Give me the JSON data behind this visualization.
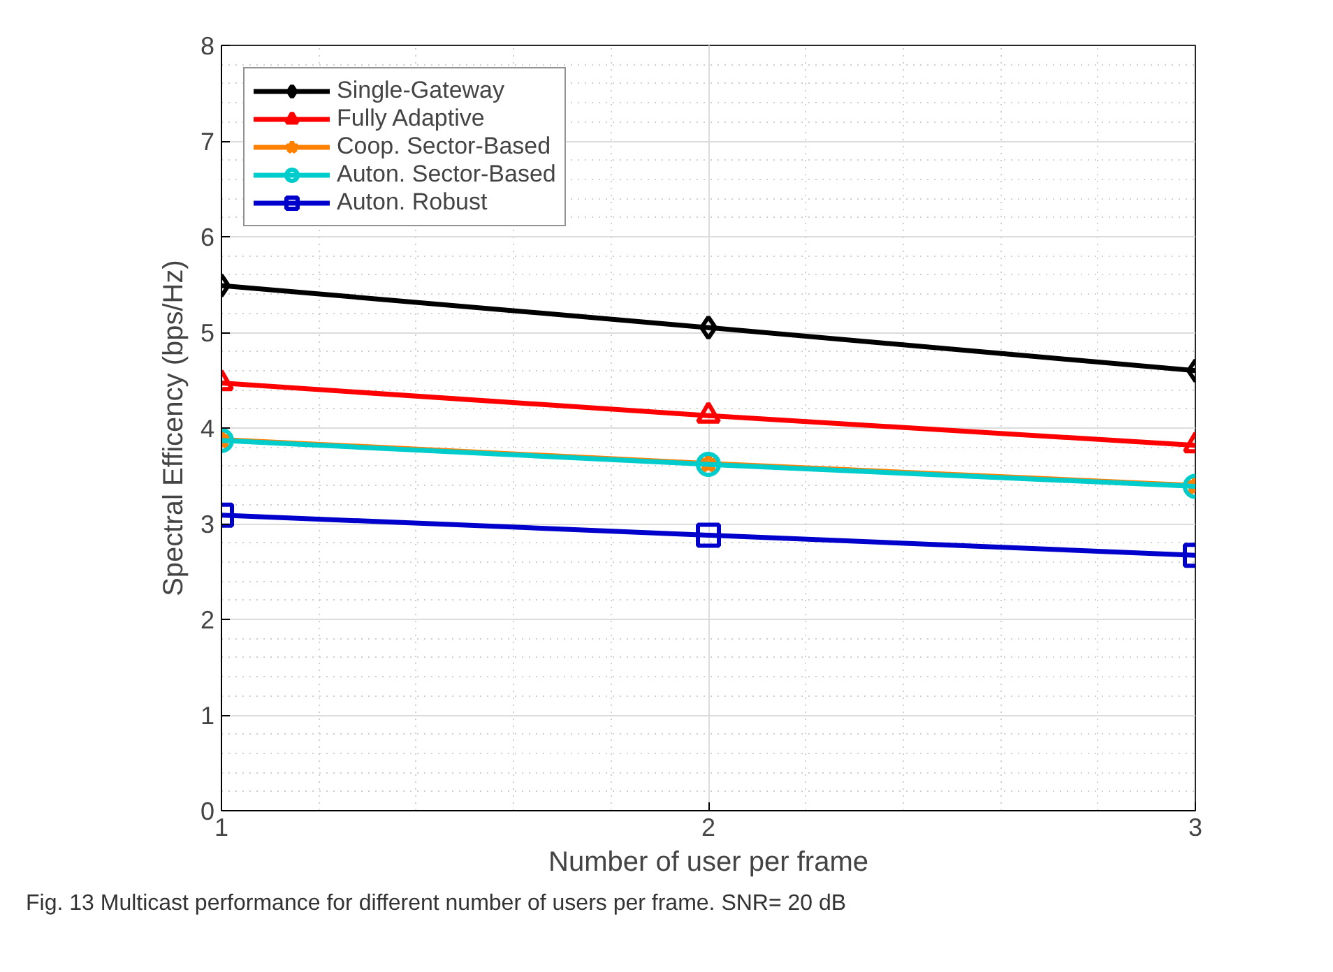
{
  "chart_data": {
    "type": "line",
    "xlabel": "Number of user per frame",
    "ylabel": "Spectral Efficency (bps/Hz)",
    "x": [
      1,
      2,
      3
    ],
    "xlim": [
      1,
      3
    ],
    "ylim": [
      0,
      8
    ],
    "xticks": [
      1,
      2,
      3
    ],
    "yticks": [
      0,
      1,
      2,
      3,
      4,
      5,
      6,
      7,
      8
    ],
    "grid": true,
    "legend": "top left",
    "line_style": "solid",
    "series": [
      {
        "name": "Single-Gateway",
        "color": "#000000",
        "marker": "diamond",
        "values": [
          5.49,
          5.05,
          4.6
        ]
      },
      {
        "name": "Fully Adaptive",
        "color": "#ff0000",
        "marker": "triangle",
        "values": [
          4.47,
          4.13,
          3.82
        ]
      },
      {
        "name": "Coop. Sector-Based",
        "color": "#ff8000",
        "marker": "star",
        "values": [
          3.88,
          3.63,
          3.4
        ]
      },
      {
        "name": "Auton. Sector-Based",
        "color": "#00cccc",
        "marker": "circle",
        "values": [
          3.87,
          3.62,
          3.39
        ]
      },
      {
        "name": "Auton. Robust",
        "color": "#0000cc",
        "marker": "square",
        "values": [
          3.09,
          2.88,
          2.67
        ]
      }
    ],
    "annotations": [
      "Fig. 13  Multicast performance for different number of users per frame. SNR= 20 dB"
    ]
  }
}
